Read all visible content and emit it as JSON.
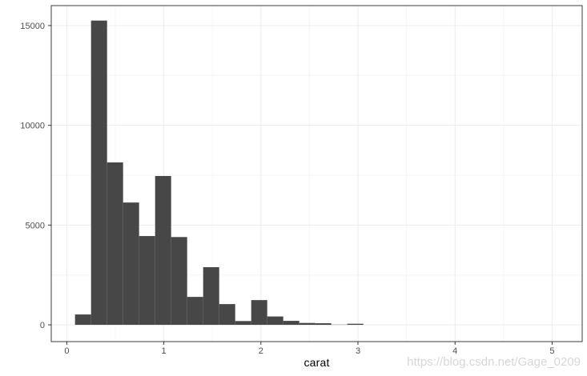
{
  "page": {
    "background": "#ffffff"
  },
  "watermark": {
    "text": "https://blog.csdn.net/Gage_0209"
  },
  "chart_data": {
    "type": "histogram",
    "title": "",
    "xlabel": "carat",
    "ylabel": "",
    "legend": "none",
    "grid": "major and minor, ggplot theme_bw style",
    "x_ticks": [
      0,
      1,
      2,
      3,
      4,
      5
    ],
    "y_ticks": [
      0,
      5000,
      10000,
      15000
    ],
    "x_minor": [
      0.5,
      1.5,
      2.5,
      3.5,
      4.5
    ],
    "y_minor": [
      2500,
      7500,
      12500
    ],
    "xlim": [
      -0.16,
      5.31
    ],
    "ylim": [
      -840,
      16000
    ],
    "bin_width": 0.165,
    "bins": [
      {
        "x0": 0.085,
        "x1": 0.25,
        "count": 520
      },
      {
        "x0": 0.25,
        "x1": 0.415,
        "count": 15250
      },
      {
        "x0": 0.415,
        "x1": 0.58,
        "count": 8140
      },
      {
        "x0": 0.58,
        "x1": 0.745,
        "count": 6130
      },
      {
        "x0": 0.745,
        "x1": 0.91,
        "count": 4450
      },
      {
        "x0": 0.91,
        "x1": 1.075,
        "count": 7460
      },
      {
        "x0": 1.075,
        "x1": 1.24,
        "count": 4400
      },
      {
        "x0": 1.24,
        "x1": 1.405,
        "count": 1400
      },
      {
        "x0": 1.405,
        "x1": 1.57,
        "count": 2890
      },
      {
        "x0": 1.57,
        "x1": 1.735,
        "count": 1040
      },
      {
        "x0": 1.735,
        "x1": 1.9,
        "count": 190
      },
      {
        "x0": 1.9,
        "x1": 2.065,
        "count": 1240
      },
      {
        "x0": 2.065,
        "x1": 2.23,
        "count": 420
      },
      {
        "x0": 2.23,
        "x1": 2.395,
        "count": 200
      },
      {
        "x0": 2.395,
        "x1": 2.56,
        "count": 95
      },
      {
        "x0": 2.56,
        "x1": 2.725,
        "count": 80
      },
      {
        "x0": 2.725,
        "x1": 2.89,
        "count": 10
      },
      {
        "x0": 2.89,
        "x1": 3.055,
        "count": 55
      }
    ],
    "colors": {
      "bar_fill": "#474747",
      "panel_background": "#ffffff",
      "panel_border": "#3c3c3c",
      "grid_major": "#ebebeb",
      "grid_minor": "#f5f5f5",
      "tick_mark": "#333333",
      "tick_text": "#4d4d4d",
      "axis_title": "#000000",
      "watermark": "#d6d6d6"
    }
  }
}
